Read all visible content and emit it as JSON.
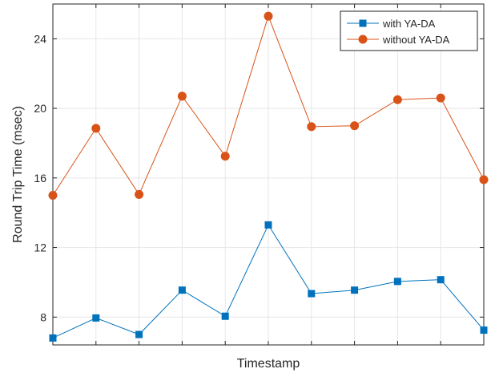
{
  "chart_data": {
    "type": "line",
    "xlabel": "Timestamp",
    "ylabel": "Round Trip Time (msec)",
    "x": [
      1,
      2,
      3,
      4,
      5,
      6,
      7,
      8,
      9,
      10,
      11
    ],
    "xlim": [
      1,
      11
    ],
    "ylim": [
      6.4,
      26
    ],
    "yticks": [
      8,
      12,
      16,
      20,
      24
    ],
    "grid": true,
    "legend_position": "top-right",
    "series": [
      {
        "name": "with YA-DA",
        "color": "#0072BD",
        "marker": "square",
        "values": [
          6.8,
          7.95,
          7.0,
          9.55,
          8.05,
          13.3,
          9.35,
          9.55,
          10.05,
          10.15,
          7.25
        ]
      },
      {
        "name": "without YA-DA",
        "color": "#D95319",
        "marker": "circle",
        "values": [
          15.0,
          18.85,
          15.05,
          20.7,
          17.25,
          25.3,
          18.95,
          19.0,
          20.5,
          20.6,
          15.9
        ]
      }
    ]
  }
}
